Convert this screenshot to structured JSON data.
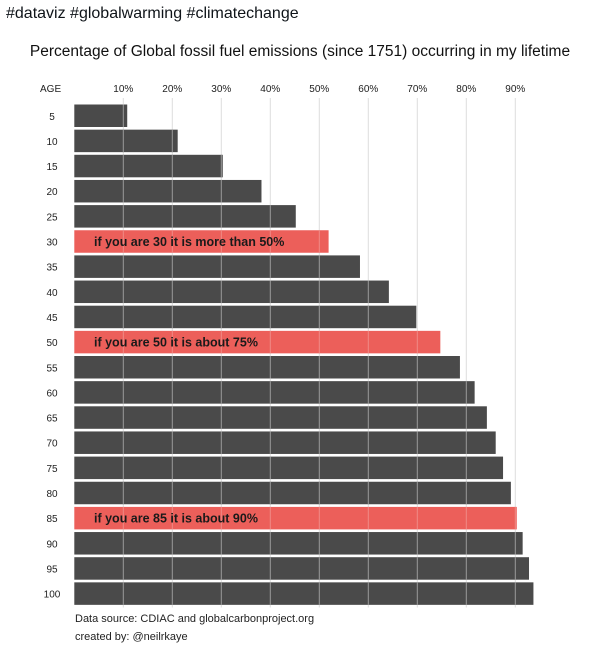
{
  "tweet_text": "#dataviz #globalwarming #climatechange",
  "chart_data": {
    "type": "bar",
    "orientation": "horizontal",
    "title": "Percentage of Global fossil fuel emissions (since 1751) occurring in my lifetime",
    "ylabel": "AGE",
    "xlim": [
      0,
      100
    ],
    "x_ticks": [
      "10%",
      "20%",
      "30%",
      "40%",
      "50%",
      "60%",
      "70%",
      "80%",
      "90%"
    ],
    "x_tick_values": [
      10,
      20,
      30,
      40,
      50,
      60,
      70,
      80,
      90
    ],
    "grid": true,
    "categories": [
      "5",
      "10",
      "15",
      "20",
      "25",
      "30",
      "35",
      "40",
      "45",
      "50",
      "55",
      "60",
      "65",
      "70",
      "75",
      "80",
      "85",
      "90",
      "95",
      "100"
    ],
    "values": [
      10.8,
      21.1,
      30.3,
      38.2,
      45.2,
      51.9,
      58.3,
      64.2,
      69.8,
      74.7,
      78.7,
      81.7,
      84.2,
      86.0,
      87.5,
      89.1,
      90.3,
      91.5,
      92.8,
      93.7
    ],
    "highlighted": {
      "30": "if you are 30 it is more than 50%",
      "50": "if you are 50 it is about 75%",
      "85": "if you are 85 it is about 90%"
    },
    "colors": {
      "bar": "#4a4a4a",
      "highlight": "#ec5f5a",
      "grid": "#dddddd"
    }
  },
  "footer": {
    "source": "Data source: CDIAC and globalcarbonproject.org",
    "credit": "created by: @neilrkaye"
  }
}
